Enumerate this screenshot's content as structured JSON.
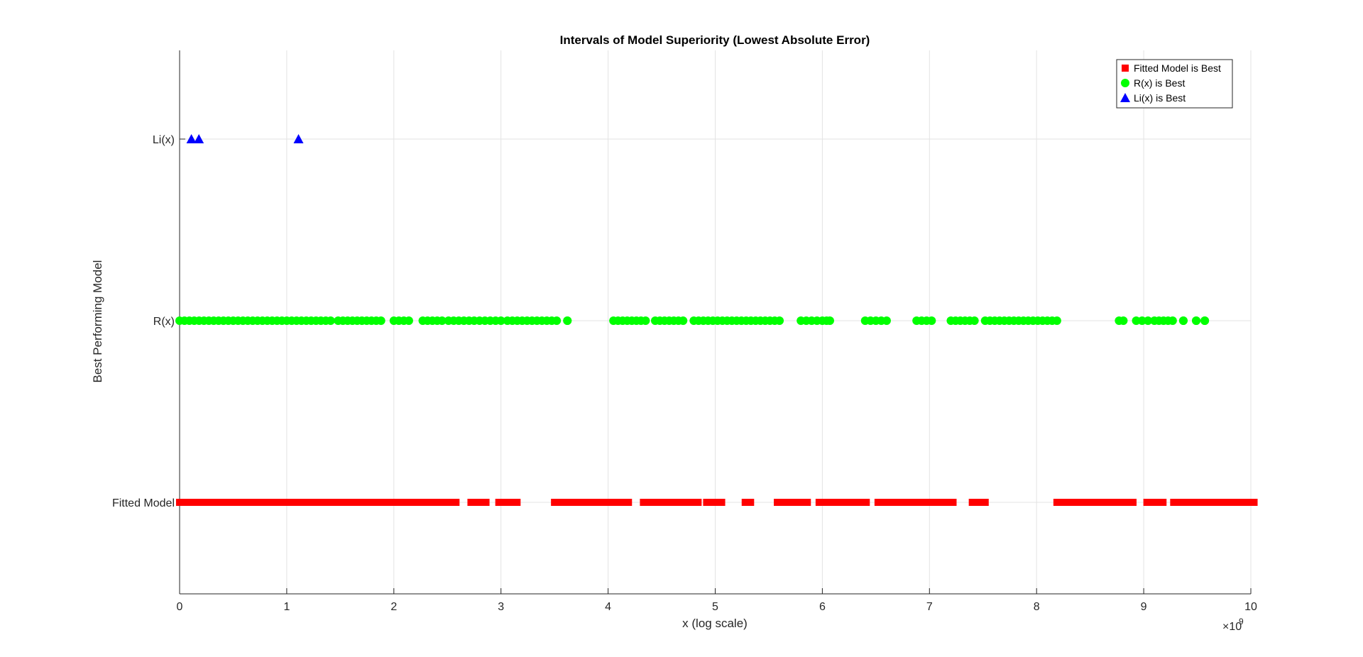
{
  "chart_data": {
    "type": "scatter",
    "title": "Intervals of Model Superiority (Lowest Absolute Error)",
    "xlabel": "x (log scale)",
    "ylabel": "Best Performing Model",
    "xlim": [
      0,
      10
    ],
    "x_exponent_label": "×10",
    "x_exponent_power": "9",
    "x_ticks": [
      0,
      1,
      2,
      3,
      4,
      5,
      6,
      7,
      8,
      9,
      10
    ],
    "y_categories": [
      "Fitted Model",
      "R(x)",
      "Li(x)"
    ],
    "grid": true,
    "legend_position": "top-right",
    "series": [
      {
        "name": "Fitted Model is Best",
        "marker": "square",
        "color": "#ff0000",
        "y_category": "Fitted Model",
        "x_intervals": [
          [
            0.0,
            1.53
          ],
          [
            1.56,
            1.64
          ],
          [
            1.68,
            1.86
          ],
          [
            1.9,
            2.32
          ],
          [
            2.36,
            2.58
          ],
          [
            2.72,
            2.86
          ],
          [
            2.98,
            3.15
          ],
          [
            3.5,
            4.07
          ],
          [
            4.12,
            4.19
          ],
          [
            4.33,
            4.47
          ],
          [
            4.53,
            4.84
          ],
          [
            4.92,
            5.06
          ],
          [
            5.28,
            5.33
          ],
          [
            5.58,
            5.86
          ],
          [
            5.97,
            6.05
          ],
          [
            6.08,
            6.41
          ],
          [
            6.52,
            6.88
          ],
          [
            6.9,
            6.96
          ],
          [
            7.02,
            7.22
          ],
          [
            7.4,
            7.52
          ],
          [
            8.19,
            8.76
          ],
          [
            8.82,
            8.9
          ],
          [
            9.03,
            9.09
          ],
          [
            9.13,
            9.18
          ],
          [
            9.28,
            9.38
          ],
          [
            9.4,
            9.5
          ],
          [
            9.53,
            9.59
          ],
          [
            9.61,
            10.03
          ]
        ]
      },
      {
        "name": "R(x) is Best",
        "marker": "circle",
        "color": "#00ff00",
        "y_category": "R(x)",
        "x_intervals": [
          [
            0.0,
            1.41
          ],
          [
            1.48,
            1.88
          ],
          [
            2.0,
            2.14
          ],
          [
            2.27,
            2.45
          ],
          [
            2.51,
            2.75
          ],
          [
            2.8,
            3.0
          ],
          [
            3.06,
            3.52
          ],
          [
            3.62,
            3.62
          ],
          [
            4.05,
            4.35
          ],
          [
            4.44,
            4.7
          ],
          [
            4.8,
            5.6
          ],
          [
            5.8,
            6.0
          ],
          [
            6.04,
            6.07
          ],
          [
            6.4,
            6.6
          ],
          [
            6.88,
            7.02
          ],
          [
            7.2,
            7.42
          ],
          [
            7.52,
            8.19
          ],
          [
            8.77,
            8.81
          ],
          [
            8.93,
            9.04
          ],
          [
            9.1,
            9.27
          ],
          [
            9.37,
            9.37
          ],
          [
            9.49,
            9.49
          ],
          [
            9.57,
            9.57
          ]
        ]
      },
      {
        "name": "Li(x) is Best",
        "marker": "triangle",
        "color": "#0000ff",
        "y_category": "Li(x)",
        "x_points": [
          0.11,
          0.18,
          1.11
        ]
      }
    ]
  }
}
